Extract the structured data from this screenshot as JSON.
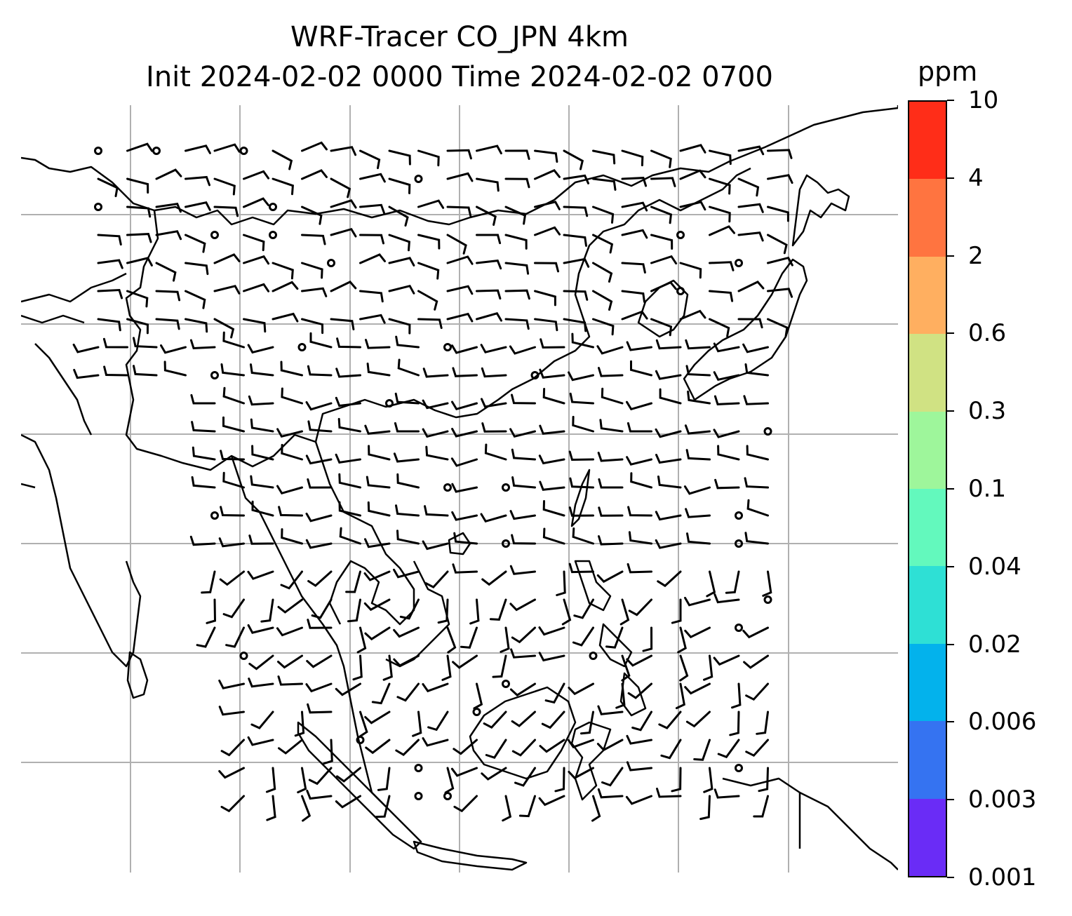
{
  "title": {
    "line1": "WRF-Tracer CO_JPN 4km",
    "line2": "Init 2024-02-02 0000 Time 2024-02-02 0700"
  },
  "colorbar": {
    "unit": "ppm",
    "levels": [
      "0.001",
      "0.003",
      "0.006",
      "0.02",
      "0.04",
      "0.1",
      "0.3",
      "0.6",
      "2",
      "4",
      "10"
    ],
    "colors": [
      "#6a2cf6",
      "#3573f1",
      "#03b2ec",
      "#2ee0d5",
      "#63f9bd",
      "#9ef69b",
      "#d0e283",
      "#ffaf60",
      "#ff7440",
      "#ff2d18"
    ]
  },
  "map": {
    "gridlines": "on",
    "gridline_color": "#b0b0b0",
    "coastline_color": "#000000",
    "wind_symbol": "wind-barbs",
    "shading": "none visible"
  }
}
